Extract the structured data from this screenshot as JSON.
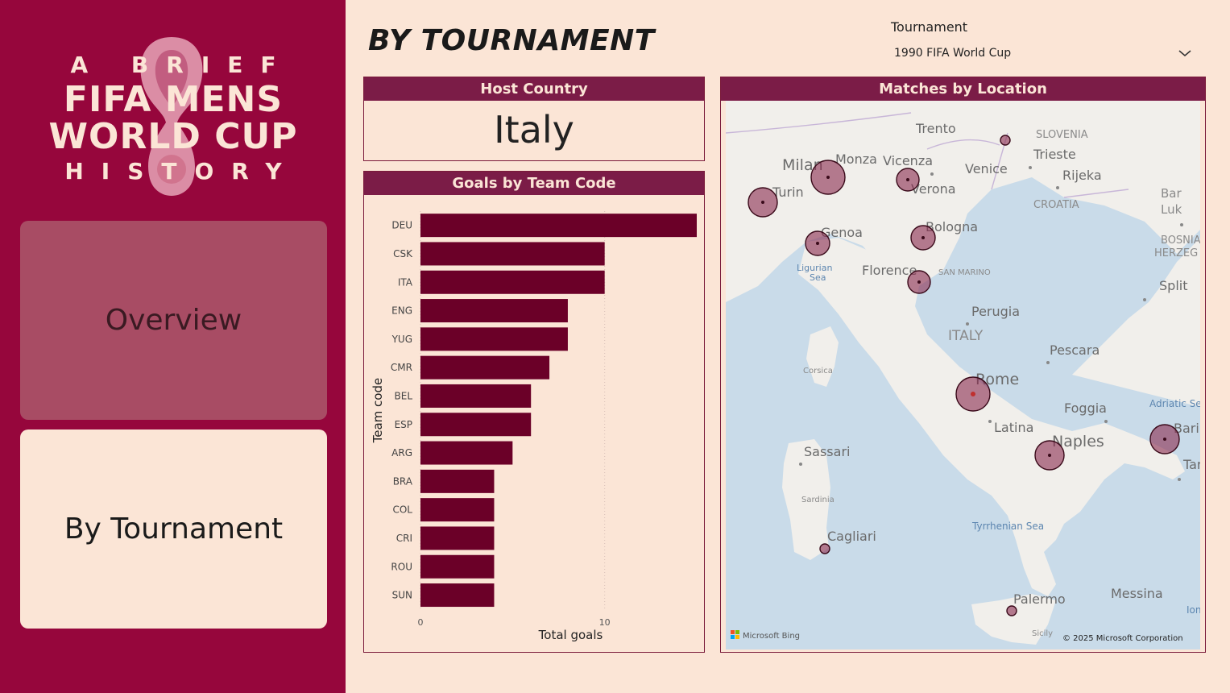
{
  "sidebar": {
    "logo": {
      "line1": "A BRIEF",
      "line2": "FIFA MENS",
      "line3": "WORLD CUP",
      "line4": "HISTORY"
    },
    "nav": [
      {
        "label": "Overview",
        "active": false
      },
      {
        "label": "By Tournament",
        "active": true
      }
    ]
  },
  "header": {
    "title": "BY TOURNAMENT",
    "slicer_label": "Tournament",
    "slicer_value": "1990 FIFA World Cup"
  },
  "host_card": {
    "title": "Host Country",
    "value": "Italy"
  },
  "goals_card": {
    "title": "Goals by Team Code"
  },
  "map_card": {
    "title": "Matches by Location",
    "attribution": "© 2025 Microsoft Corporation",
    "provider": "Microsoft Bing",
    "labels": {
      "cities": [
        "Trento",
        "Milan",
        "Monza",
        "Vicenza",
        "Venice",
        "Trieste",
        "Rijeka",
        "Turin",
        "Verona",
        "Genoa",
        "Bologna",
        "Florence",
        "Perugia",
        "Pescara",
        "Rome",
        "Foggia",
        "Latina",
        "Naples",
        "Bari",
        "Sassari",
        "Cagliari",
        "Palermo",
        "Messina",
        "Split",
        "Tar"
      ],
      "regions": [
        "SLOVENIA",
        "CROATIA",
        "BOSNIA HERZEG",
        "SAN MARINO",
        "ITALY",
        "Corsica",
        "Sardinia",
        "Sicily",
        "Bar Luk"
      ],
      "seas": [
        "Ligurian Sea",
        "Tyrrhenian Sea",
        "Adriatic Sea",
        "Ion"
      ]
    }
  },
  "colors": {
    "sidebar_bg": "#96063c",
    "page_bg": "#fbe5d6",
    "header_bar": "#7b1c47",
    "bar_fill": "#6b0028",
    "bubble_fill": "#8b2a4f"
  },
  "chart_data": {
    "type": "bar",
    "orientation": "horizontal",
    "title": "Goals by Team Code",
    "xlabel": "Total goals",
    "ylabel": "Team code",
    "categories": [
      "DEU",
      "CSK",
      "ITA",
      "ENG",
      "YUG",
      "CMR",
      "BEL",
      "ESP",
      "ARG",
      "BRA",
      "COL",
      "CRI",
      "ROU",
      "SUN"
    ],
    "values": [
      15,
      10,
      10,
      8,
      8,
      7,
      6,
      6,
      5,
      4,
      4,
      4,
      4,
      4
    ],
    "xticks": [
      0,
      10
    ],
    "xlim": [
      0,
      15
    ],
    "grid": true
  }
}
